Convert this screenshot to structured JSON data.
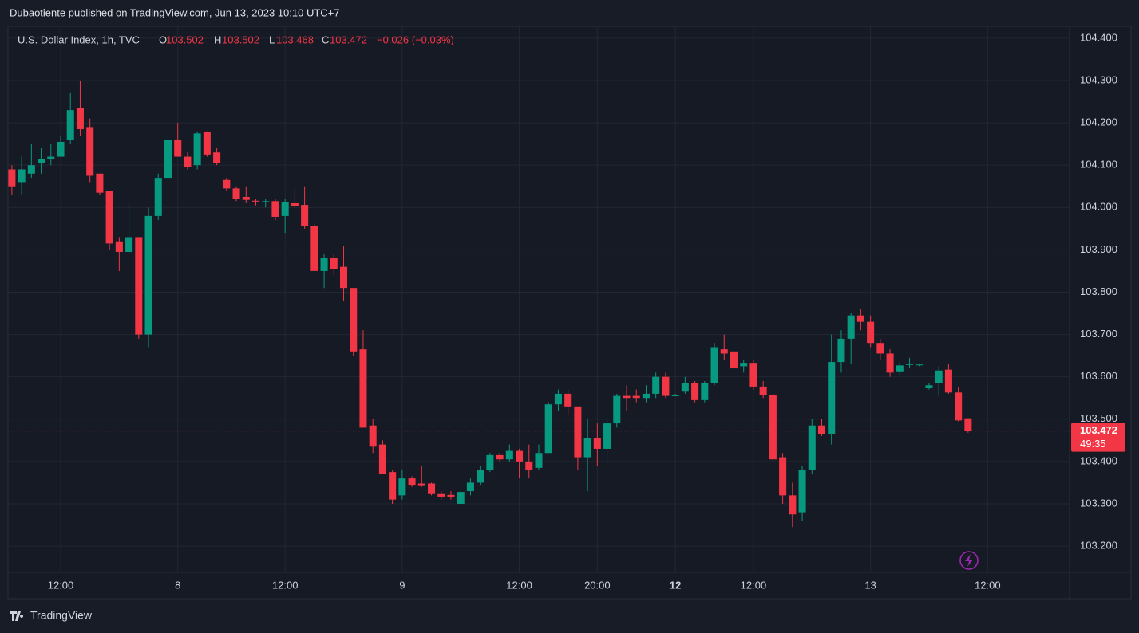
{
  "header": {
    "published": "Dubaotiente published on TradingView.com, Jun 13, 2023 10:10 UTC+7"
  },
  "footer": {
    "brand": "TradingView"
  },
  "chart_data": {
    "type": "candlestick",
    "symbol": "U.S. Dollar Index, 1h, TVC",
    "legend_labels": [
      "O",
      "H",
      "L",
      "C"
    ],
    "change": "−0.026 (−0.03%)",
    "countdown": "49:35",
    "up_color": "#089981",
    "down_color": "#f23645",
    "grid": true,
    "x": [
      0,
      1,
      2,
      3,
      4,
      5,
      6,
      7,
      8,
      9,
      10,
      11,
      12,
      13,
      14,
      15,
      16,
      17,
      18,
      19,
      20,
      21,
      22,
      23,
      24,
      25,
      26,
      27,
      28,
      29,
      30,
      31,
      32,
      33,
      34,
      35,
      36,
      37,
      38,
      39,
      40,
      41,
      42,
      43,
      44,
      45,
      46,
      47,
      48,
      49,
      50,
      51,
      52,
      53,
      54,
      55,
      56,
      57,
      58,
      59,
      60,
      61,
      62,
      63,
      64,
      65,
      66,
      67,
      68,
      69,
      70,
      71,
      72,
      73,
      74,
      75,
      76,
      77,
      78,
      79,
      80,
      81,
      82,
      83,
      84,
      85,
      86,
      87,
      88,
      89,
      90,
      91,
      92,
      93,
      94,
      95,
      96,
      97,
      98
    ],
    "open": [
      104.09,
      104.06,
      104.08,
      104.105,
      104.115,
      104.12,
      104.16,
      104.235,
      104.19,
      104.08,
      104.04,
      103.92,
      103.895,
      103.93,
      103.7,
      103.98,
      104.07,
      104.16,
      104.12,
      104.1,
      104.178,
      104.13,
      104.065,
      104.045,
      104.025,
      104.016,
      104.012,
      104.015,
      103.98,
      104.01,
      104.006,
      103.957,
      103.85,
      103.88,
      103.86,
      103.81,
      103.665,
      103.485,
      103.44,
      103.375,
      103.32,
      103.36,
      103.348,
      103.348,
      103.323,
      103.321,
      103.3,
      103.33,
      103.35,
      103.38,
      103.415,
      103.405,
      103.425,
      103.4,
      103.385,
      103.42,
      103.535,
      103.56,
      103.53,
      103.41,
      103.455,
      103.43,
      103.49,
      103.555,
      103.555,
      103.55,
      103.56,
      103.6,
      103.555,
      103.565,
      103.585,
      103.545,
      103.585,
      103.665,
      103.66,
      103.625,
      103.633,
      103.577,
      103.558,
      103.41,
      103.32,
      103.28,
      103.38,
      103.485,
      103.465,
      103.635,
      103.69,
      103.745,
      103.73,
      103.68,
      103.655,
      103.613,
      103.628,
      103.628,
      103.573,
      103.585,
      103.617,
      103.563,
      103.502
    ],
    "high": [
      104.1,
      104.12,
      104.15,
      104.14,
      104.15,
      104.17,
      104.27,
      104.3,
      104.21,
      104.08,
      104.04,
      103.93,
      104.01,
      103.93,
      104.0,
      104.08,
      104.17,
      104.2,
      104.13,
      104.18,
      104.18,
      104.14,
      104.07,
      104.05,
      104.05,
      104.02,
      104.02,
      104.02,
      104.02,
      104.05,
      104.05,
      103.96,
      103.89,
      103.89,
      103.91,
      103.81,
      103.71,
      103.5,
      103.45,
      103.38,
      103.38,
      103.365,
      103.39,
      103.35,
      103.33,
      103.33,
      103.33,
      103.36,
      103.39,
      103.42,
      103.42,
      103.44,
      103.43,
      103.44,
      103.44,
      103.54,
      103.57,
      103.57,
      103.53,
      103.5,
      103.49,
      103.5,
      103.56,
      103.58,
      103.57,
      103.58,
      103.61,
      103.61,
      103.56,
      103.6,
      103.59,
      103.59,
      103.68,
      103.7,
      103.665,
      103.64,
      103.64,
      103.59,
      103.56,
      103.42,
      103.35,
      103.39,
      103.5,
      103.5,
      103.7,
      103.71,
      103.75,
      103.76,
      103.745,
      103.69,
      103.665,
      103.635,
      103.645,
      103.63,
      103.585,
      103.625,
      103.63,
      103.575,
      103.502
    ],
    "low": [
      104.03,
      104.03,
      104.07,
      104.08,
      104.1,
      104.12,
      104.15,
      104.17,
      104.06,
      104.03,
      103.9,
      103.85,
      103.89,
      103.69,
      103.67,
      103.97,
      104.06,
      104.12,
      104.09,
      104.09,
      104.12,
      104.1,
      104.04,
      104.015,
      104.01,
      104.005,
      104.0,
      103.97,
      103.94,
      104.0,
      103.95,
      103.85,
      103.81,
      103.84,
      103.78,
      103.65,
      103.48,
      103.42,
      103.37,
      103.3,
      103.31,
      103.34,
      103.34,
      103.32,
      103.31,
      103.31,
      103.3,
      103.32,
      103.345,
      103.375,
      103.4,
      103.4,
      103.36,
      103.36,
      103.38,
      103.42,
      103.52,
      103.51,
      103.38,
      103.33,
      103.39,
      103.4,
      103.48,
      103.52,
      103.54,
      103.54,
      103.55,
      103.55,
      103.555,
      103.56,
      103.54,
      103.54,
      103.58,
      103.64,
      103.61,
      103.61,
      103.57,
      103.55,
      103.4,
      103.3,
      103.245,
      103.26,
      103.37,
      103.46,
      103.44,
      103.61,
      103.63,
      103.71,
      103.67,
      103.64,
      103.6,
      103.605,
      103.62,
      103.625,
      103.57,
      103.555,
      103.56,
      103.495,
      103.468
    ],
    "close": [
      104.05,
      104.09,
      104.1,
      104.115,
      104.12,
      104.155,
      104.23,
      104.185,
      104.075,
      104.035,
      103.915,
      103.895,
      103.93,
      103.7,
      103.98,
      104.07,
      104.16,
      104.12,
      104.095,
      104.175,
      104.125,
      104.105,
      104.045,
      104.02,
      104.018,
      104.014,
      104.015,
      103.978,
      104.012,
      104.003,
      103.957,
      103.85,
      103.88,
      103.855,
      103.81,
      103.66,
      103.48,
      103.435,
      103.37,
      103.31,
      103.36,
      103.345,
      103.344,
      103.323,
      103.317,
      103.317,
      103.328,
      103.35,
      103.38,
      103.415,
      103.405,
      103.425,
      103.4,
      103.38,
      103.42,
      103.535,
      103.56,
      103.53,
      103.41,
      103.455,
      103.43,
      103.49,
      103.555,
      103.55,
      103.55,
      103.56,
      103.6,
      103.555,
      103.556,
      103.585,
      103.545,
      103.585,
      103.67,
      103.655,
      103.62,
      103.633,
      103.577,
      103.558,
      103.405,
      103.32,
      103.275,
      103.38,
      103.485,
      103.465,
      103.635,
      103.69,
      103.745,
      103.73,
      103.68,
      103.655,
      103.61,
      103.627,
      103.63,
      103.629,
      103.58,
      103.615,
      103.563,
      103.497,
      103.472
    ],
    "xlim": [
      -0.4,
      108.4
    ],
    "xticks": [
      {
        "value": 5,
        "label": "12:00"
      },
      {
        "value": 17,
        "label": "8"
      },
      {
        "value": 28,
        "label": "12:00"
      },
      {
        "value": 40,
        "label": "9"
      },
      {
        "value": 52,
        "label": "12:00"
      },
      {
        "value": 60,
        "label": "20:00"
      },
      {
        "value": 68,
        "label": "12"
      },
      {
        "value": 76,
        "label": "12:00"
      },
      {
        "value": 88,
        "label": "13"
      },
      {
        "value": 100,
        "label": "12:00"
      }
    ],
    "ylim": [
      103.138,
      104.428
    ],
    "yticks": [
      {
        "value": 103.2,
        "label": "103.200"
      },
      {
        "value": 103.3,
        "label": "103.300"
      },
      {
        "value": 103.4,
        "label": "103.400"
      },
      {
        "value": 103.5,
        "label": "103.500"
      },
      {
        "value": 103.6,
        "label": "103.600"
      },
      {
        "value": 103.7,
        "label": "103.700"
      },
      {
        "value": 103.8,
        "label": "103.800"
      },
      {
        "value": 103.9,
        "label": "103.900"
      },
      {
        "value": 104.0,
        "label": "104.000"
      },
      {
        "value": 104.1,
        "label": "104.100"
      },
      {
        "value": 104.2,
        "label": "104.200"
      },
      {
        "value": 104.3,
        "label": "104.300"
      },
      {
        "value": 104.4,
        "label": "104.400"
      }
    ]
  }
}
